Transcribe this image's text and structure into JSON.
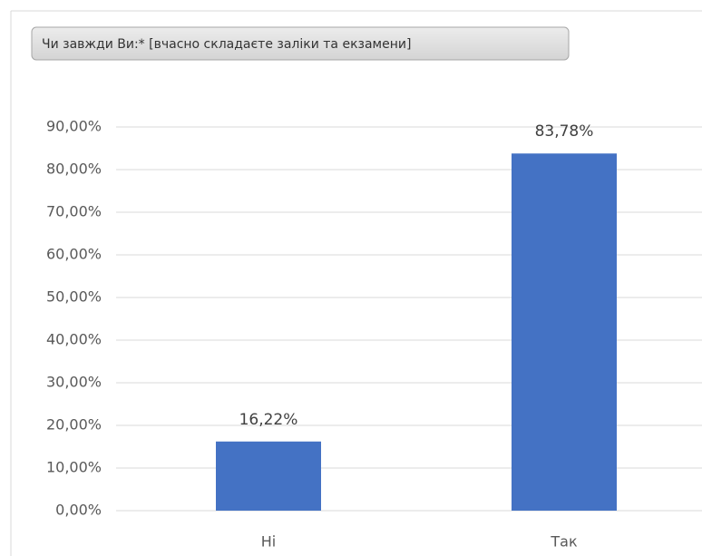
{
  "chart_data": {
    "type": "bar",
    "title": "Чи завжди Ви:* [вчасно складаєте заліки та екзамени]",
    "categories": [
      "Ні",
      "Так"
    ],
    "values": [
      16.22,
      83.78
    ],
    "value_labels": [
      "16,22%",
      "83,78%"
    ],
    "color": "#4472c4",
    "ylim": [
      0,
      90
    ],
    "yticks": [
      {
        "value": 0,
        "label": "0,00%"
      },
      {
        "value": 10,
        "label": "10,00%"
      },
      {
        "value": 20,
        "label": "20,00%"
      },
      {
        "value": 30,
        "label": "30,00%"
      },
      {
        "value": 40,
        "label": "40,00%"
      },
      {
        "value": 50,
        "label": "50,00%"
      },
      {
        "value": 60,
        "label": "60,00%"
      },
      {
        "value": 70,
        "label": "70,00%"
      },
      {
        "value": 80,
        "label": "80,00%"
      },
      {
        "value": 90,
        "label": "90,00%"
      }
    ],
    "grid": true
  }
}
